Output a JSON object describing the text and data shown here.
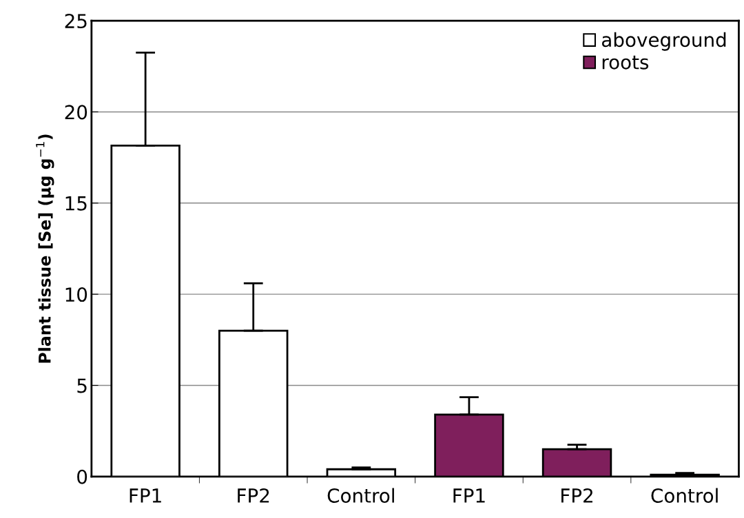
{
  "chart_data": {
    "type": "bar",
    "ylabel": "Plant tissue [Se] (μg g$^{−1}$)",
    "categories": [
      "FP1",
      "FP2",
      "Control",
      "FP1",
      "FP2",
      "Control"
    ],
    "series": [
      {
        "name": "aboveground",
        "color": "#ffffff",
        "values": [
          18.15,
          8.0,
          0.4,
          null,
          null,
          null
        ],
        "errors": [
          5.1,
          2.6,
          0.1,
          null,
          null,
          null
        ]
      },
      {
        "name": "roots",
        "color": "#7f1f5c",
        "values": [
          null,
          null,
          null,
          3.4,
          1.5,
          0.1
        ],
        "errors": [
          null,
          null,
          null,
          0.95,
          0.25,
          0.1
        ]
      }
    ],
    "ylim": [
      0,
      25
    ],
    "yticks": [
      0,
      5,
      10,
      15,
      20,
      25
    ],
    "grid": "y",
    "legend": "top right"
  }
}
